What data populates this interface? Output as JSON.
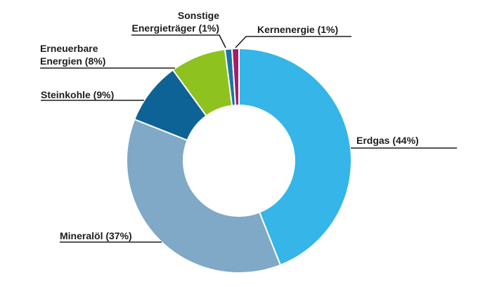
{
  "chart_data": {
    "type": "pie",
    "subtype": "donut",
    "title": "",
    "unit": "%",
    "legend": "none",
    "background": "#FFFFFF",
    "label_color": "#1D1D1B",
    "segments": [
      {
        "label": "Erdgas",
        "value": 44,
        "color": "#35B5E8",
        "text": "Erdgas (44%)"
      },
      {
        "label": "Mineralöl",
        "value": 37,
        "color": "#7FA9C6",
        "text": "Mineralöl (37%)"
      },
      {
        "label": "Steinkohle",
        "value": 9,
        "color": "#0E6396",
        "text": "Steinkohle (9%)"
      },
      {
        "label": "Erneuerbare Energien",
        "value": 8,
        "color": "#8DC21F",
        "text_line1": "Erneuerbare",
        "text_line2": "Energien (8%)"
      },
      {
        "label": "Sonstige Energieträger",
        "value": 1,
        "color": "#1B74A8",
        "text_line1": "Sonstige",
        "text_line2": "Energieträger (1%)"
      },
      {
        "label": "Kernenergie",
        "value": 1,
        "color": "#A21E6B",
        "text": "Kernenergie (1%)"
      }
    ]
  }
}
